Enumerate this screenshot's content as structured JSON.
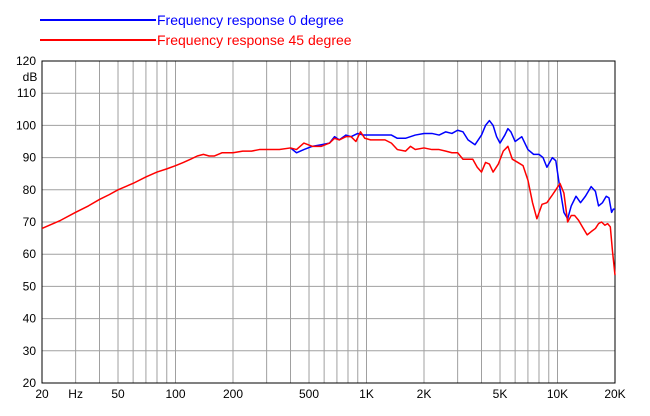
{
  "chart_data": {
    "type": "line",
    "title": "",
    "xlabel": "",
    "ylabel": "dB",
    "x_scale": "log",
    "xlim": [
      20,
      20000
    ],
    "ylim": [
      20,
      120
    ],
    "y_ticks": [
      20,
      30,
      40,
      50,
      60,
      70,
      80,
      90,
      100,
      110,
      120
    ],
    "x_tick_labels": [
      {
        "value": 20,
        "label": "20"
      },
      {
        "value": 30,
        "label": "Hz"
      },
      {
        "value": 50,
        "label": "50"
      },
      {
        "value": 100,
        "label": "100"
      },
      {
        "value": 200,
        "label": "200"
      },
      {
        "value": 500,
        "label": "500"
      },
      {
        "value": 1000,
        "label": "1K"
      },
      {
        "value": 2000,
        "label": "2K"
      },
      {
        "value": 5000,
        "label": "5K"
      },
      {
        "value": 10000,
        "label": "10K"
      },
      {
        "value": 20000,
        "label": "20K"
      }
    ],
    "grid": true,
    "legend_position": "top-left",
    "series": [
      {
        "name": "Frequency response 0 degree",
        "color": "#0000ff",
        "points": [
          [
            400,
            93
          ],
          [
            430,
            91.5
          ],
          [
            470,
            92.5
          ],
          [
            520,
            93.5
          ],
          [
            580,
            94
          ],
          [
            640,
            94.5
          ],
          [
            680,
            96.5
          ],
          [
            720,
            95.5
          ],
          [
            780,
            97
          ],
          [
            830,
            96.5
          ],
          [
            900,
            97.5
          ],
          [
            960,
            97
          ],
          [
            1050,
            97
          ],
          [
            1150,
            97
          ],
          [
            1250,
            97
          ],
          [
            1350,
            97
          ],
          [
            1450,
            96
          ],
          [
            1600,
            96
          ],
          [
            1800,
            97
          ],
          [
            2000,
            97.5
          ],
          [
            2200,
            97.5
          ],
          [
            2400,
            97
          ],
          [
            2600,
            98
          ],
          [
            2800,
            97.5
          ],
          [
            3000,
            98.5
          ],
          [
            3200,
            98
          ],
          [
            3400,
            95.5
          ],
          [
            3700,
            94
          ],
          [
            4000,
            97
          ],
          [
            4200,
            100
          ],
          [
            4400,
            101.5
          ],
          [
            4600,
            100
          ],
          [
            4800,
            96.5
          ],
          [
            5000,
            94.5
          ],
          [
            5300,
            97
          ],
          [
            5500,
            99
          ],
          [
            5700,
            98
          ],
          [
            6000,
            95
          ],
          [
            6500,
            96.5
          ],
          [
            7000,
            92.5
          ],
          [
            7500,
            91
          ],
          [
            8000,
            91
          ],
          [
            8400,
            90
          ],
          [
            8800,
            87
          ],
          [
            9400,
            90
          ],
          [
            9800,
            89
          ],
          [
            10200,
            82
          ],
          [
            10800,
            73
          ],
          [
            11300,
            71
          ],
          [
            11800,
            75
          ],
          [
            12500,
            78
          ],
          [
            13200,
            76
          ],
          [
            14000,
            78
          ],
          [
            15000,
            81
          ],
          [
            15800,
            79.5
          ],
          [
            16400,
            75
          ],
          [
            17200,
            76
          ],
          [
            18000,
            78
          ],
          [
            18600,
            77.5
          ],
          [
            19200,
            73
          ],
          [
            19600,
            74
          ],
          [
            20000,
            74
          ]
        ]
      },
      {
        "name": "Frequency response 45 degree",
        "color": "#ff0000",
        "points": [
          [
            20,
            68
          ],
          [
            25,
            70.5
          ],
          [
            30,
            73
          ],
          [
            35,
            75
          ],
          [
            40,
            77
          ],
          [
            45,
            78.5
          ],
          [
            50,
            80
          ],
          [
            60,
            82
          ],
          [
            70,
            84
          ],
          [
            80,
            85.5
          ],
          [
            90,
            86.5
          ],
          [
            100,
            87.5
          ],
          [
            110,
            88.5
          ],
          [
            120,
            89.5
          ],
          [
            130,
            90.5
          ],
          [
            140,
            91
          ],
          [
            150,
            90.5
          ],
          [
            160,
            90.5
          ],
          [
            175,
            91.5
          ],
          [
            200,
            91.5
          ],
          [
            225,
            92
          ],
          [
            250,
            92
          ],
          [
            275,
            92.5
          ],
          [
            300,
            92.5
          ],
          [
            350,
            92.5
          ],
          [
            400,
            93
          ],
          [
            430,
            92.5
          ],
          [
            470,
            94.5
          ],
          [
            520,
            93.5
          ],
          [
            580,
            93.5
          ],
          [
            640,
            94.5
          ],
          [
            680,
            96
          ],
          [
            720,
            95.5
          ],
          [
            780,
            96.5
          ],
          [
            830,
            96.5
          ],
          [
            880,
            95
          ],
          [
            930,
            98
          ],
          [
            980,
            96
          ],
          [
            1050,
            95.5
          ],
          [
            1150,
            95.5
          ],
          [
            1250,
            95.5
          ],
          [
            1350,
            94.5
          ],
          [
            1450,
            92.5
          ],
          [
            1600,
            92
          ],
          [
            1700,
            93.5
          ],
          [
            1800,
            92.5
          ],
          [
            2000,
            93
          ],
          [
            2200,
            92.5
          ],
          [
            2400,
            92.5
          ],
          [
            2600,
            92
          ],
          [
            2800,
            91.5
          ],
          [
            3000,
            91.5
          ],
          [
            3200,
            89.5
          ],
          [
            3400,
            89.5
          ],
          [
            3600,
            89.5
          ],
          [
            3800,
            87
          ],
          [
            4000,
            85.5
          ],
          [
            4200,
            88.5
          ],
          [
            4400,
            88
          ],
          [
            4600,
            85.5
          ],
          [
            4900,
            88
          ],
          [
            5200,
            92
          ],
          [
            5500,
            93.5
          ],
          [
            5800,
            89.5
          ],
          [
            6200,
            88.5
          ],
          [
            6600,
            87.5
          ],
          [
            7000,
            83
          ],
          [
            7400,
            76
          ],
          [
            7800,
            71
          ],
          [
            8300,
            75.5
          ],
          [
            8800,
            76
          ],
          [
            9300,
            78
          ],
          [
            9800,
            80
          ],
          [
            10300,
            82
          ],
          [
            10800,
            79
          ],
          [
            11300,
            70
          ],
          [
            11800,
            72
          ],
          [
            12300,
            72
          ],
          [
            12900,
            70.5
          ],
          [
            13500,
            68.5
          ],
          [
            14300,
            66
          ],
          [
            15000,
            67
          ],
          [
            15800,
            68
          ],
          [
            16400,
            69.5
          ],
          [
            17000,
            70
          ],
          [
            17700,
            69
          ],
          [
            18300,
            69.5
          ],
          [
            18900,
            68.5
          ],
          [
            19400,
            61
          ],
          [
            20000,
            53.5
          ]
        ]
      }
    ]
  }
}
